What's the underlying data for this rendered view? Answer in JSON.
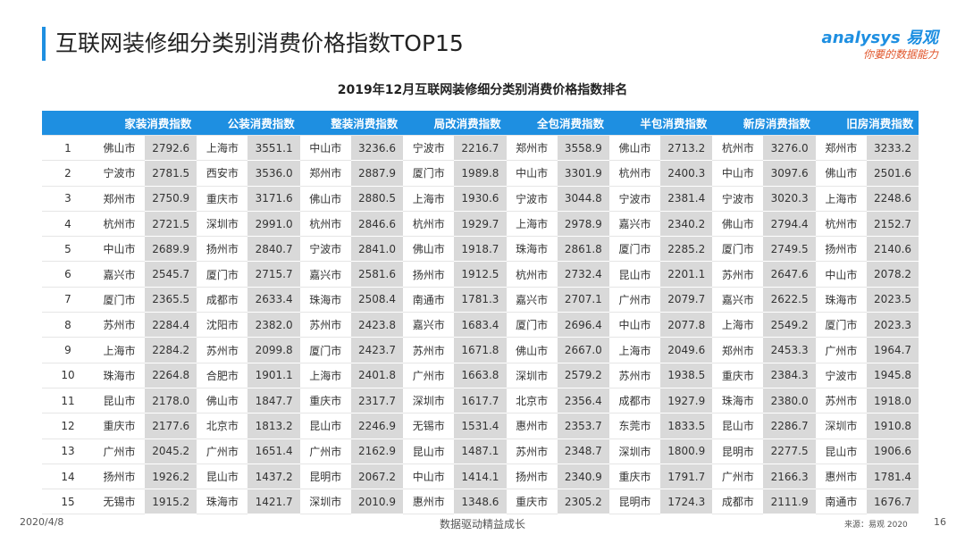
{
  "header": {
    "title": "互联网装修细分类别消费价格指数TOP15",
    "logo": "analysys 易观",
    "slogan": "你要的数据能力"
  },
  "table": {
    "caption": "2019年12月互联网装修细分类别消费价格指数排名",
    "columns": [
      "家装消费指数",
      "公装消费指数",
      "整装消费指数",
      "局改消费指数",
      "全包消费指数",
      "半包消费指数",
      "新房消费指数",
      "旧房消费指数"
    ],
    "rows": [
      [
        "1",
        "佛山市",
        "2792.6",
        "上海市",
        "3551.1",
        "中山市",
        "3236.6",
        "宁波市",
        "2216.7",
        "郑州市",
        "3558.9",
        "佛山市",
        "2713.2",
        "杭州市",
        "3276.0",
        "郑州市",
        "3233.2"
      ],
      [
        "2",
        "宁波市",
        "2781.5",
        "西安市",
        "3536.0",
        "郑州市",
        "2887.9",
        "厦门市",
        "1989.8",
        "中山市",
        "3301.9",
        "杭州市",
        "2400.3",
        "中山市",
        "3097.6",
        "佛山市",
        "2501.6"
      ],
      [
        "3",
        "郑州市",
        "2750.9",
        "重庆市",
        "3171.6",
        "佛山市",
        "2880.5",
        "上海市",
        "1930.6",
        "宁波市",
        "3044.8",
        "宁波市",
        "2381.4",
        "宁波市",
        "3020.3",
        "上海市",
        "2248.6"
      ],
      [
        "4",
        "杭州市",
        "2721.5",
        "深圳市",
        "2991.0",
        "杭州市",
        "2846.6",
        "杭州市",
        "1929.7",
        "上海市",
        "2978.9",
        "嘉兴市",
        "2340.2",
        "佛山市",
        "2794.4",
        "杭州市",
        "2152.7"
      ],
      [
        "5",
        "中山市",
        "2689.9",
        "扬州市",
        "2840.7",
        "宁波市",
        "2841.0",
        "佛山市",
        "1918.7",
        "珠海市",
        "2861.8",
        "厦门市",
        "2285.2",
        "厦门市",
        "2749.5",
        "扬州市",
        "2140.6"
      ],
      [
        "6",
        "嘉兴市",
        "2545.7",
        "厦门市",
        "2715.7",
        "嘉兴市",
        "2581.6",
        "扬州市",
        "1912.5",
        "杭州市",
        "2732.4",
        "昆山市",
        "2201.1",
        "苏州市",
        "2647.6",
        "中山市",
        "2078.2"
      ],
      [
        "7",
        "厦门市",
        "2365.5",
        "成都市",
        "2633.4",
        "珠海市",
        "2508.4",
        "南通市",
        "1781.3",
        "嘉兴市",
        "2707.1",
        "广州市",
        "2079.7",
        "嘉兴市",
        "2622.5",
        "珠海市",
        "2023.5"
      ],
      [
        "8",
        "苏州市",
        "2284.4",
        "沈阳市",
        "2382.0",
        "苏州市",
        "2423.8",
        "嘉兴市",
        "1683.4",
        "厦门市",
        "2696.4",
        "中山市",
        "2077.8",
        "上海市",
        "2549.2",
        "厦门市",
        "2023.3"
      ],
      [
        "9",
        "上海市",
        "2284.2",
        "苏州市",
        "2099.8",
        "厦门市",
        "2423.7",
        "苏州市",
        "1671.8",
        "佛山市",
        "2667.0",
        "上海市",
        "2049.6",
        "郑州市",
        "2453.3",
        "广州市",
        "1964.7"
      ],
      [
        "10",
        "珠海市",
        "2264.8",
        "合肥市",
        "1901.1",
        "上海市",
        "2401.8",
        "广州市",
        "1663.8",
        "深圳市",
        "2579.2",
        "苏州市",
        "1938.5",
        "重庆市",
        "2384.3",
        "宁波市",
        "1945.8"
      ],
      [
        "11",
        "昆山市",
        "2178.0",
        "佛山市",
        "1847.7",
        "重庆市",
        "2317.7",
        "深圳市",
        "1617.7",
        "北京市",
        "2356.4",
        "成都市",
        "1927.9",
        "珠海市",
        "2380.0",
        "苏州市",
        "1918.0"
      ],
      [
        "12",
        "重庆市",
        "2177.6",
        "北京市",
        "1813.2",
        "昆山市",
        "2246.9",
        "无锡市",
        "1531.4",
        "惠州市",
        "2353.7",
        "东莞市",
        "1833.5",
        "昆山市",
        "2286.7",
        "深圳市",
        "1910.8"
      ],
      [
        "13",
        "广州市",
        "2045.2",
        "广州市",
        "1651.4",
        "广州市",
        "2162.9",
        "昆山市",
        "1487.1",
        "苏州市",
        "2348.7",
        "深圳市",
        "1800.9",
        "昆明市",
        "2277.5",
        "昆山市",
        "1906.6"
      ],
      [
        "14",
        "扬州市",
        "1926.2",
        "昆山市",
        "1437.2",
        "昆明市",
        "2067.2",
        "中山市",
        "1414.1",
        "扬州市",
        "2340.9",
        "重庆市",
        "1791.7",
        "广州市",
        "2166.3",
        "惠州市",
        "1781.4"
      ],
      [
        "15",
        "无锡市",
        "1915.2",
        "珠海市",
        "1421.7",
        "深圳市",
        "2010.9",
        "惠州市",
        "1348.6",
        "重庆市",
        "2305.2",
        "昆明市",
        "1724.3",
        "成都市",
        "2111.9",
        "南通市",
        "1676.7"
      ]
    ]
  },
  "footer": {
    "date": "2020/4/8",
    "motto": "数据驱动精益成长",
    "source": "来源：易观 2020",
    "page": "16"
  }
}
